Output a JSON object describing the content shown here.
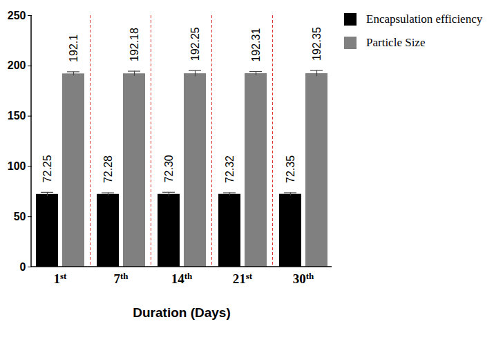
{
  "chart_data": {
    "type": "bar",
    "x_label": "Duration (Days)",
    "categories": [
      "1st",
      "7th",
      "14th",
      "21st",
      "30th"
    ],
    "series": [
      {
        "name": "Encapsulation efficiency",
        "color": "#000000",
        "values": [
          72.25,
          72.28,
          72.3,
          72.32,
          72.35
        ],
        "value_labels": [
          "72.25",
          "72.28",
          "72.30",
          "72.32",
          "72.35"
        ],
        "errors": [
          2,
          1.5,
          2,
          1.5,
          1.5
        ]
      },
      {
        "name": "Particle Size",
        "color": "#808080",
        "values": [
          192.1,
          192.18,
          192.25,
          192.31,
          192.35
        ],
        "value_labels": [
          "192.1",
          "192.18",
          "192.25",
          "192.31",
          "192.35"
        ],
        "errors": [
          2,
          2.5,
          3,
          2,
          3
        ]
      }
    ],
    "ylim": [
      0,
      250
    ],
    "yticks": [
      0,
      50,
      100,
      150,
      200,
      250
    ],
    "data_labels": true,
    "legend": "top-right",
    "grid": false
  }
}
